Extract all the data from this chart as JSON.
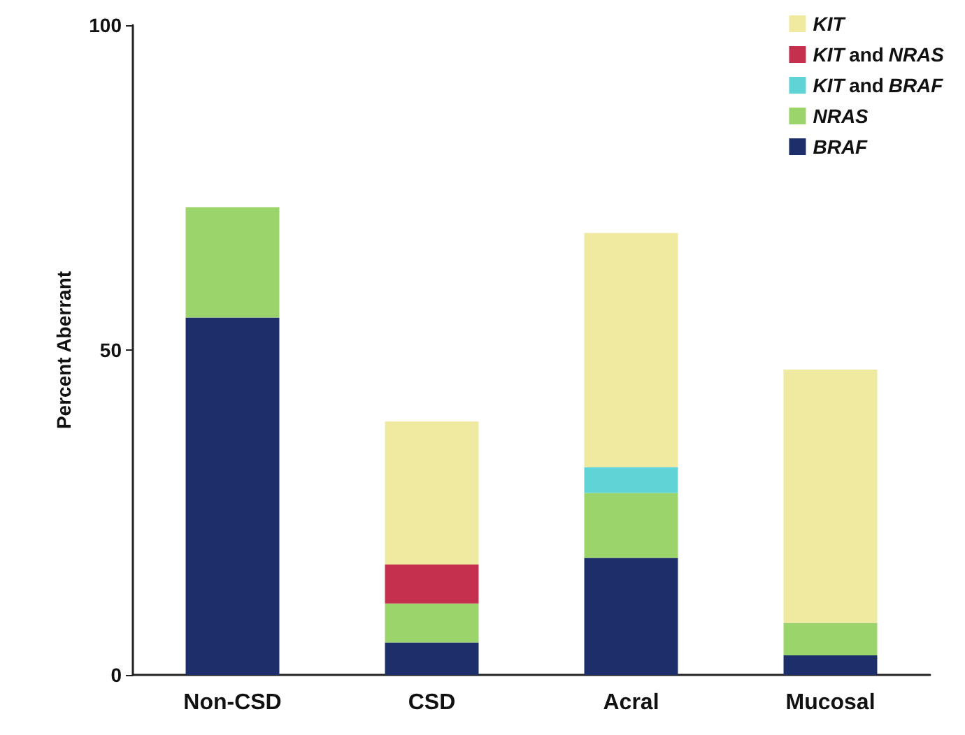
{
  "chart_data": {
    "type": "bar",
    "stacked": true,
    "ylabel": "Percent Aberrant",
    "categories": [
      "Non-CSD",
      "CSD",
      "Acral",
      "Mucosal"
    ],
    "ylim": [
      0,
      100
    ],
    "yticks": [
      0,
      50,
      100
    ],
    "grid": false,
    "legend": "top right",
    "series": [
      {
        "name": "BRAF",
        "color": "#1c2f6b",
        "values": [
          55,
          5,
          18,
          3
        ]
      },
      {
        "name": "NRAS",
        "color": "#9bd46a",
        "values": [
          17,
          6,
          10,
          5
        ]
      },
      {
        "name": "KIT and BRAF",
        "color": "#5fd3d6",
        "values": [
          null,
          null,
          4,
          null
        ]
      },
      {
        "name": "KIT and NRAS",
        "color": "#c4304e",
        "values": [
          null,
          6,
          null,
          null
        ]
      },
      {
        "name": "KIT",
        "color": "#efeaa0",
        "values": [
          null,
          22,
          36,
          39
        ]
      }
    ]
  }
}
